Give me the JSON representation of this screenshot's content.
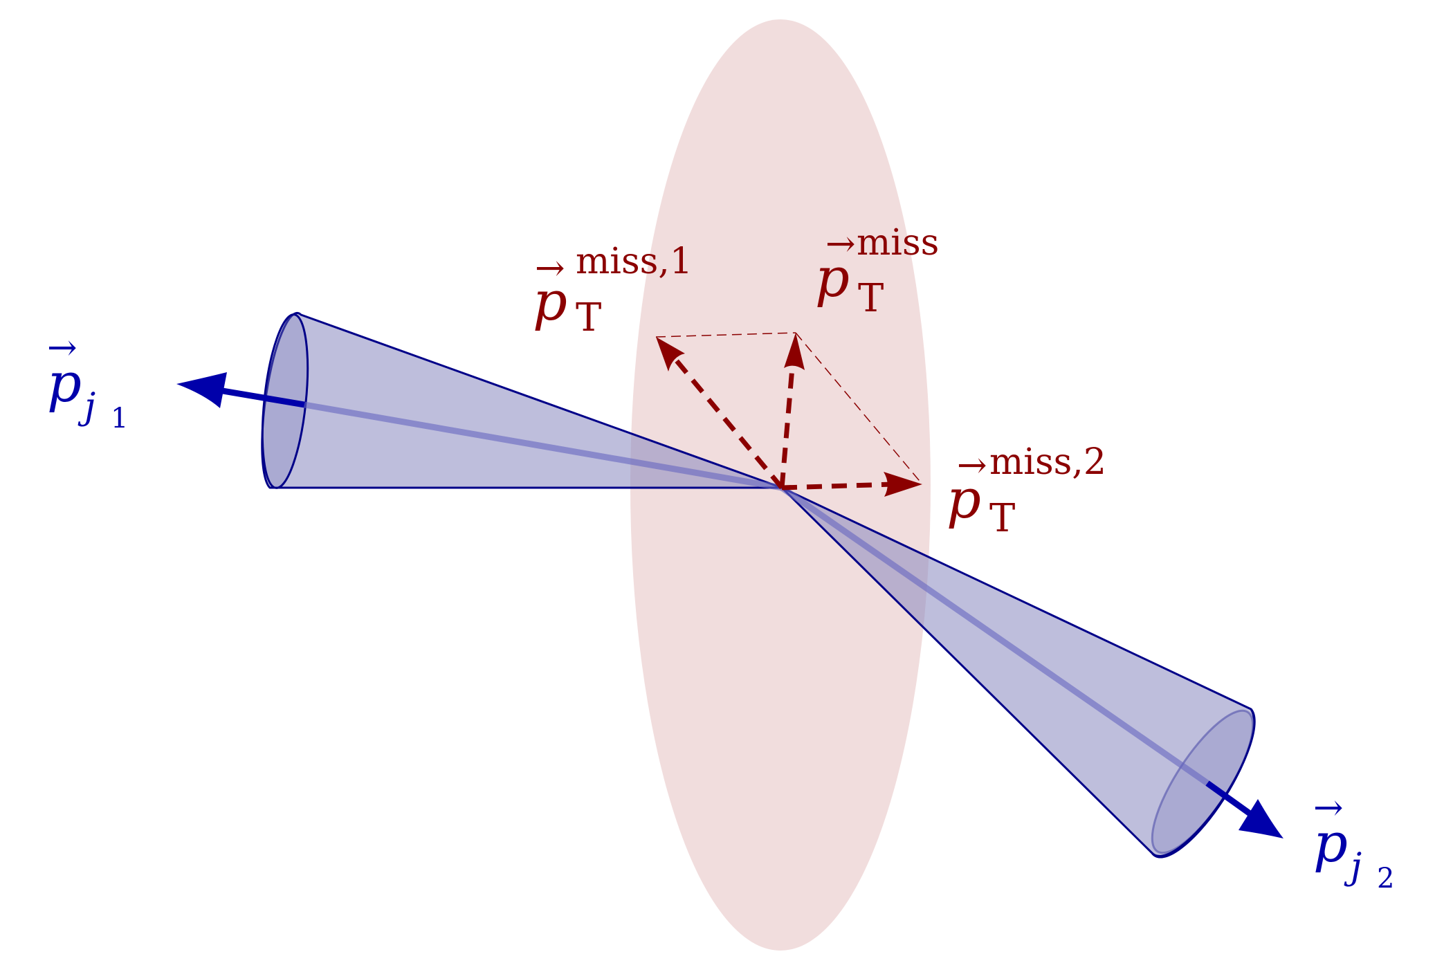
{
  "colors": {
    "jet_blue": "#0000aa",
    "jet_fill": "#8888c0",
    "met_red": "#8b0000",
    "disk_fill": "#ebcfcf",
    "background": "#ffffff"
  },
  "jets": [
    {
      "id": "j1",
      "label_base": "p",
      "label_subscript": "j",
      "label_subscript_index": "1"
    },
    {
      "id": "j2",
      "label_base": "p",
      "label_subscript": "j",
      "label_subscript_index": "2"
    }
  ],
  "missing_momentum": {
    "total": {
      "base": "p",
      "subscript": "T",
      "superscript": "miss"
    },
    "component_1": {
      "base": "p",
      "subscript": "T",
      "superscript": "miss,1"
    },
    "component_2": {
      "base": "p",
      "subscript": "T",
      "superscript": "miss,2"
    }
  },
  "vector_arrow_glyph": "→"
}
